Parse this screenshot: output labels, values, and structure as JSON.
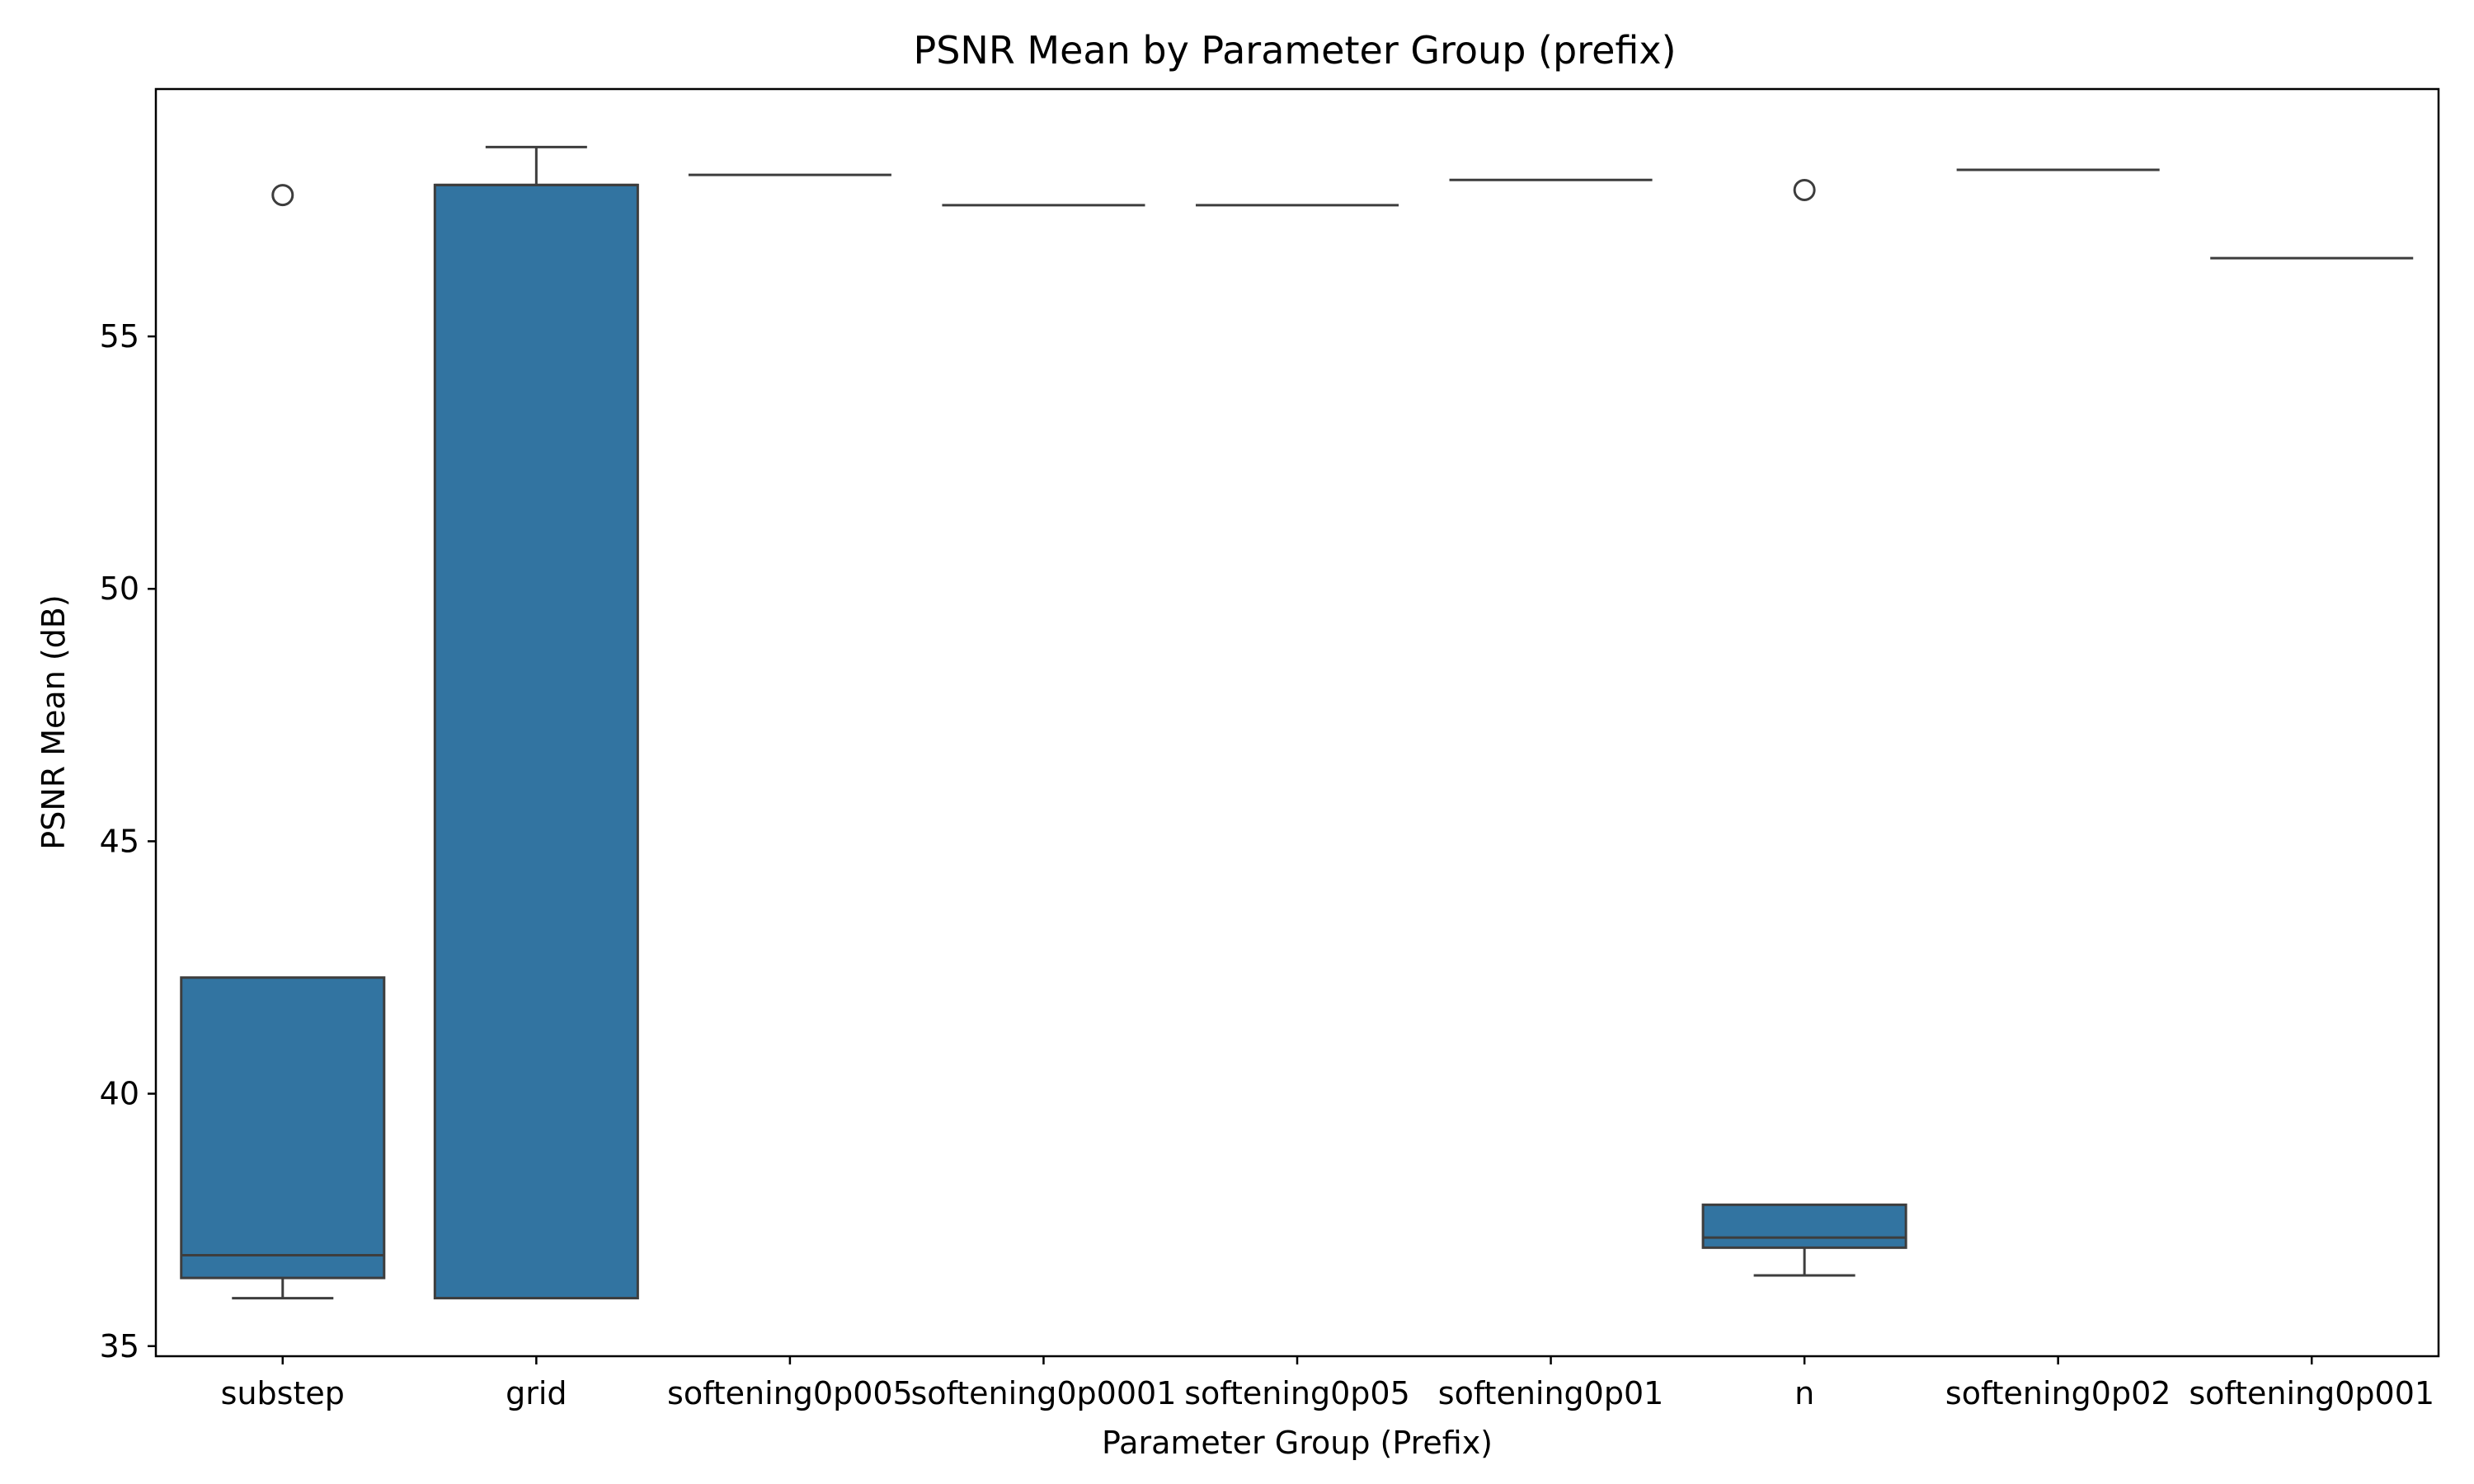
{
  "chart_data": {
    "type": "box",
    "title": "PSNR Mean by Parameter Group (prefix)",
    "xlabel": "Parameter Group (Prefix)",
    "ylabel": "PSNR Mean (dB)",
    "ylim": [
      34.8,
      59.9
    ],
    "yticks": [
      35,
      40,
      45,
      50,
      55
    ],
    "grid": false,
    "box_color": "#3274a1",
    "line_color": "#3d3d3d",
    "categories": [
      "substep",
      "grid",
      "softening0p005",
      "softening0p0001",
      "softening0p05",
      "softening0p01",
      "n",
      "softening0p02",
      "softening0p001"
    ],
    "boxes": [
      {
        "category": "substep",
        "whisker_low": 35.95,
        "q1": 36.35,
        "median": 36.8,
        "q3": 42.3,
        "whisker_high": 42.3,
        "outliers": [
          57.8
        ]
      },
      {
        "category": "grid",
        "whisker_low": 35.95,
        "q1": 35.95,
        "median": 58.0,
        "q3": 58.0,
        "whisker_high": 58.75,
        "outliers": []
      },
      {
        "category": "softening0p005",
        "whisker_low": 58.2,
        "q1": 58.2,
        "median": 58.2,
        "q3": 58.2,
        "whisker_high": 58.2,
        "outliers": []
      },
      {
        "category": "softening0p0001",
        "whisker_low": 57.6,
        "q1": 57.6,
        "median": 57.6,
        "q3": 57.6,
        "whisker_high": 57.6,
        "outliers": []
      },
      {
        "category": "softening0p05",
        "whisker_low": 57.6,
        "q1": 57.6,
        "median": 57.6,
        "q3": 57.6,
        "whisker_high": 57.6,
        "outliers": []
      },
      {
        "category": "softening0p01",
        "whisker_low": 58.1,
        "q1": 58.1,
        "median": 58.1,
        "q3": 58.1,
        "whisker_high": 58.1,
        "outliers": []
      },
      {
        "category": "n",
        "whisker_low": 36.4,
        "q1": 36.95,
        "median": 37.15,
        "q3": 37.8,
        "whisker_high": 37.8,
        "outliers": [
          57.9
        ]
      },
      {
        "category": "softening0p02",
        "whisker_low": 58.3,
        "q1": 58.3,
        "median": 58.3,
        "q3": 58.3,
        "whisker_high": 58.3,
        "outliers": []
      },
      {
        "category": "softening0p001",
        "whisker_low": 56.55,
        "q1": 56.55,
        "median": 56.55,
        "q3": 56.55,
        "whisker_high": 56.55,
        "outliers": []
      }
    ]
  }
}
